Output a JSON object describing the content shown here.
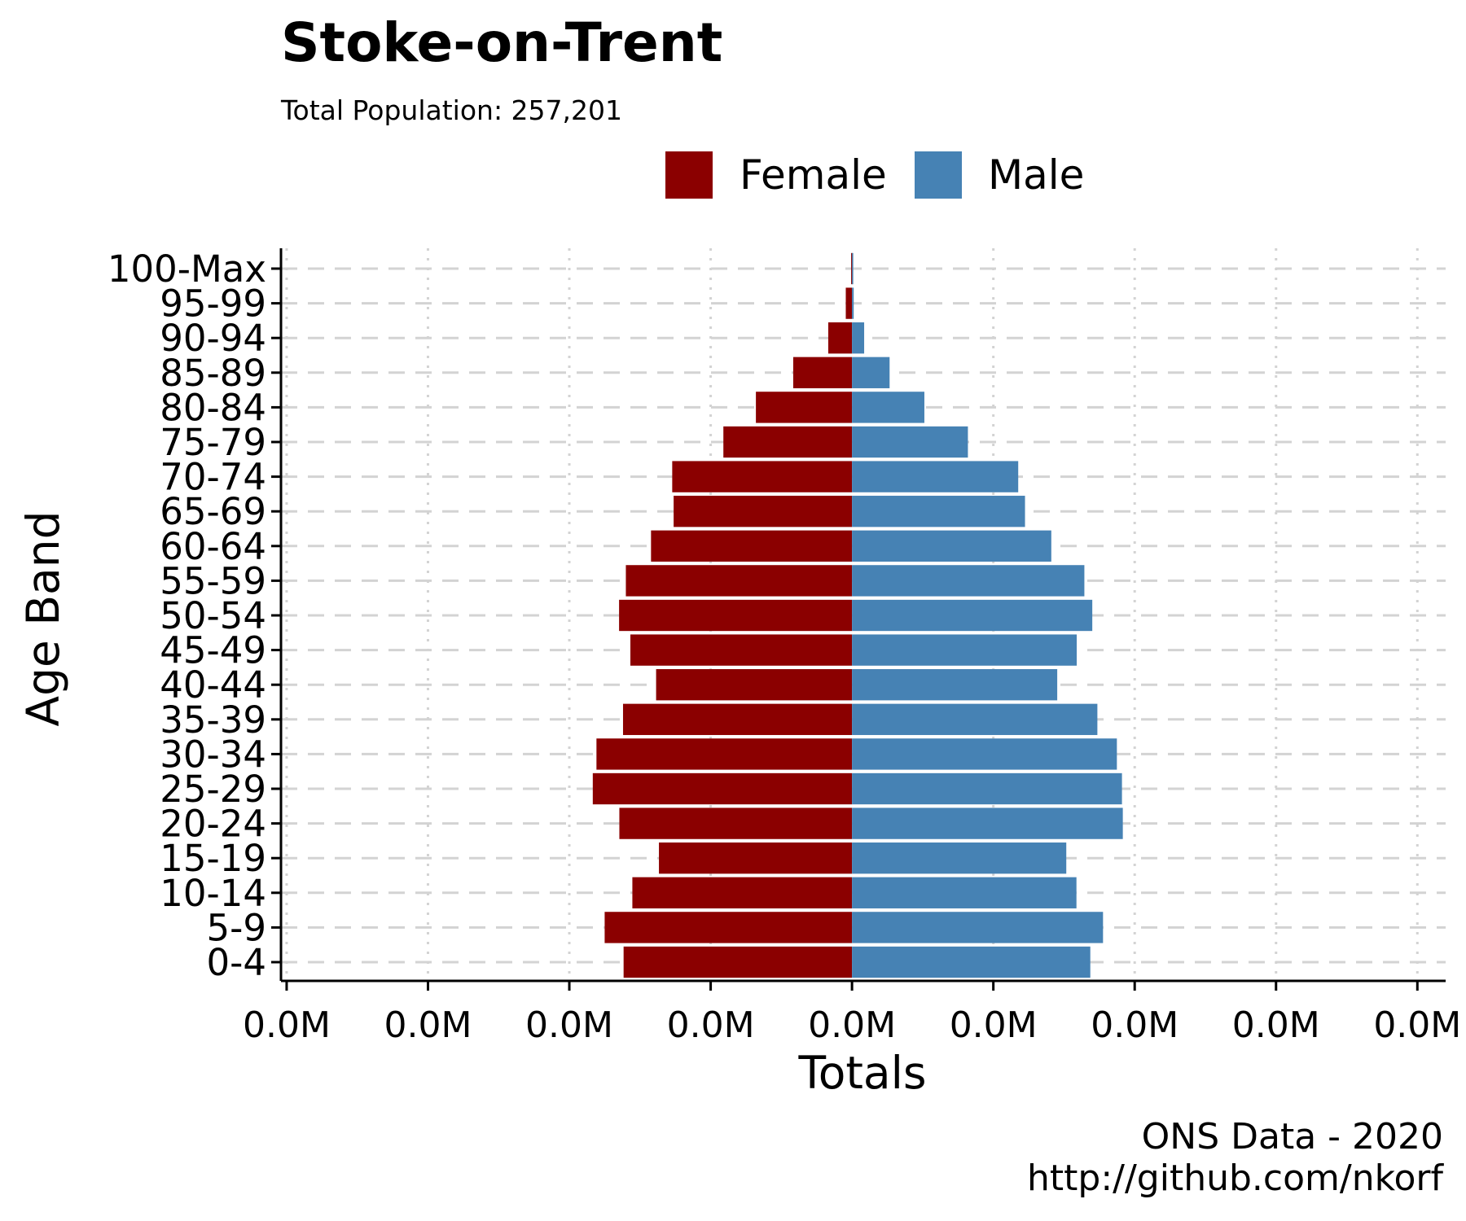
{
  "chart_data": {
    "type": "bar",
    "title": "Stoke-on-Trent",
    "subtitle": "Total Population:  257,201",
    "xlabel": "Totals",
    "ylabel": "Age Band",
    "x_tick_labels": [
      "0.0M",
      "0.0M",
      "0.0M",
      "0.0M",
      "0.0M",
      "0.0M",
      "0.0M",
      "0.0M",
      "0.0M"
    ],
    "x_ticks": [
      -20000,
      -15000,
      -10000,
      -5000,
      0,
      5000,
      10000,
      15000,
      20000
    ],
    "xlim": [
      -20200,
      21000
    ],
    "legend": [
      {
        "name": "Female",
        "color": "#8B0000"
      },
      {
        "name": "Male",
        "color": "#4682B4"
      }
    ],
    "legend_position": "top-center",
    "caption_lines": [
      "ONS Data - 2020",
      "http://github.com/nkorf"
    ],
    "categories": [
      "0-4",
      "5-9",
      "10-14",
      "15-19",
      "20-24",
      "25-29",
      "30-34",
      "35-39",
      "40-44",
      "45-49",
      "50-54",
      "55-59",
      "60-64",
      "65-69",
      "70-74",
      "75-79",
      "80-84",
      "85-89",
      "90-94",
      "95-99",
      "100-Max"
    ],
    "series": [
      {
        "name": "Female",
        "color": "#8B0000",
        "values": [
          -8080,
          -8750,
          -7770,
          -6830,
          -8230,
          -9170,
          -9040,
          -8100,
          -6930,
          -7840,
          -8240,
          -8000,
          -7110,
          -6310,
          -6360,
          -4550,
          -3400,
          -2080,
          -840,
          -220,
          -30
        ]
      },
      {
        "name": "Male",
        "color": "#4682B4",
        "values": [
          8430,
          8880,
          7940,
          7580,
          9580,
          9550,
          9370,
          8680,
          7260,
          7950,
          8500,
          8220,
          7050,
          6120,
          5880,
          4100,
          2560,
          1330,
          430,
          60,
          10
        ]
      }
    ]
  }
}
